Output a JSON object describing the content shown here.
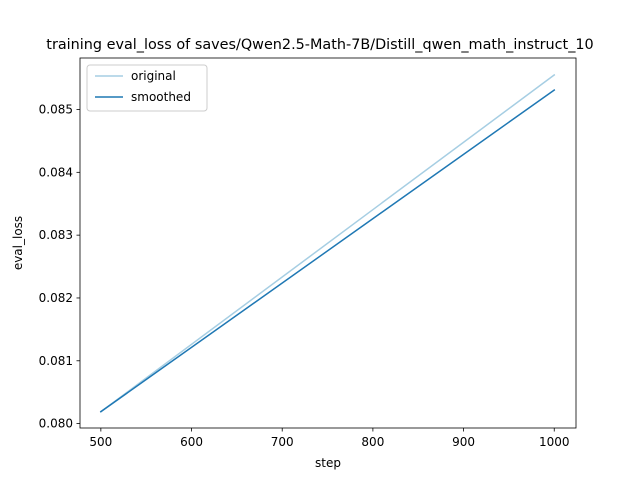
{
  "chart_data": {
    "type": "line",
    "title": "training eval_loss of saves/Qwen2.5-Math-7B/Distill_qwen_math_instruct_10",
    "xlabel": "step",
    "ylabel": "eval_loss",
    "x": [
      500,
      1000
    ],
    "series": [
      {
        "name": "original",
        "color": "#a6cee3",
        "values": [
          0.08019,
          0.08555
        ]
      },
      {
        "name": "smoothed",
        "color": "#1f78b4",
        "values": [
          0.08019,
          0.08531
        ]
      }
    ],
    "xlim": [
      477,
      1024
    ],
    "ylim": [
      0.07993,
      0.08582
    ],
    "xticks": [
      500,
      600,
      700,
      800,
      900,
      1000
    ],
    "xtick_labels": [
      "500",
      "600",
      "700",
      "800",
      "900",
      "1000"
    ],
    "yticks": [
      0.08,
      0.081,
      0.082,
      0.083,
      0.084,
      0.085
    ],
    "ytick_labels": [
      "0.080",
      "0.081",
      "0.082",
      "0.083",
      "0.084",
      "0.085"
    ],
    "grid": false,
    "legend_position": "top-left"
  }
}
